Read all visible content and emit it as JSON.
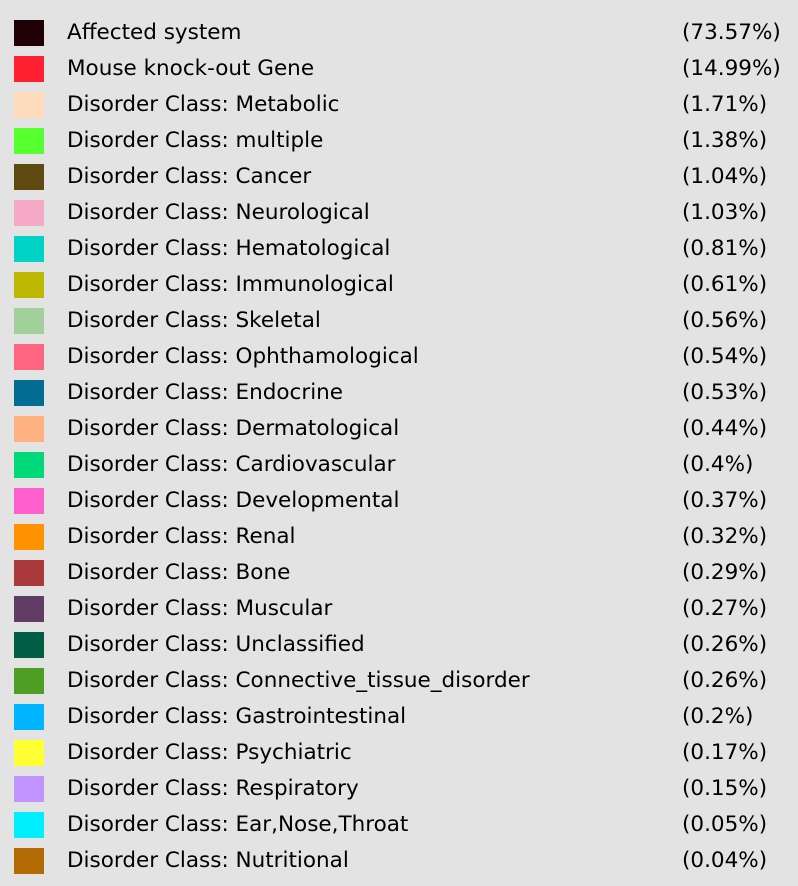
{
  "chart_data": {
    "type": "pie",
    "legend": {
      "items": [
        {
          "label": "Affected system",
          "percent": "(73.57%)",
          "value": 73.57,
          "color": "#200206"
        },
        {
          "label": "Mouse knock-out Gene",
          "percent": "(14.99%)",
          "value": 14.99,
          "color": "#ff2132"
        },
        {
          "label": "Disorder Class: Metabolic",
          "percent": "(1.71%)",
          "value": 1.71,
          "color": "#fedbbd"
        },
        {
          "label": "Disorder Class: multiple",
          "percent": "(1.38%)",
          "value": 1.38,
          "color": "#56ff2e"
        },
        {
          "label": "Disorder Class: Cancer",
          "percent": "(1.04%)",
          "value": 1.04,
          "color": "#5f4b12"
        },
        {
          "label": "Disorder Class: Neurological",
          "percent": "(1.03%)",
          "value": 1.03,
          "color": "#f6a9c6"
        },
        {
          "label": "Disorder Class: Hematological",
          "percent": "(0.81%)",
          "value": 0.81,
          "color": "#00d2c6"
        },
        {
          "label": "Disorder Class: Immunological",
          "percent": "(0.61%)",
          "value": 0.61,
          "color": "#bdb902"
        },
        {
          "label": "Disorder Class: Skeletal",
          "percent": "(0.56%)",
          "value": 0.56,
          "color": "#a1d09a"
        },
        {
          "label": "Disorder Class: Ophthamological",
          "percent": "(0.54%)",
          "value": 0.54,
          "color": "#ff6481"
        },
        {
          "label": "Disorder Class: Endocrine",
          "percent": "(0.53%)",
          "value": 0.53,
          "color": "#026c93"
        },
        {
          "label": "Disorder Class: Dermatological",
          "percent": "(0.44%)",
          "value": 0.44,
          "color": "#ffb080"
        },
        {
          "label": "Disorder Class: Cardiovascular",
          "percent": "(0.4%)",
          "value": 0.4,
          "color": "#00d97a"
        },
        {
          "label": "Disorder Class: Developmental",
          "percent": "(0.37%)",
          "value": 0.37,
          "color": "#ff5fcd"
        },
        {
          "label": "Disorder Class: Renal",
          "percent": "(0.32%)",
          "value": 0.32,
          "color": "#ff9201"
        },
        {
          "label": "Disorder Class: Bone",
          "percent": "(0.29%)",
          "value": 0.29,
          "color": "#a9393b"
        },
        {
          "label": "Disorder Class: Muscular",
          "percent": "(0.27%)",
          "value": 0.27,
          "color": "#613d66"
        },
        {
          "label": "Disorder Class: Unclassified",
          "percent": "(0.26%)",
          "value": 0.26,
          "color": "#015e44"
        },
        {
          "label": "Disorder Class: Connective_tissue_disorder",
          "percent": "(0.26%)",
          "value": 0.26,
          "color": "#4e9e23"
        },
        {
          "label": "Disorder Class: Gastrointestinal",
          "percent": "(0.2%)",
          "value": 0.2,
          "color": "#00b4ff"
        },
        {
          "label": "Disorder Class: Psychiatric",
          "percent": "(0.17%)",
          "value": 0.17,
          "color": "#ffff33"
        },
        {
          "label": "Disorder Class: Respiratory",
          "percent": "(0.15%)",
          "value": 0.15,
          "color": "#c193ff"
        },
        {
          "label": "Disorder Class: Ear,Nose,Throat",
          "percent": "(0.05%)",
          "value": 0.05,
          "color": "#00eeff"
        },
        {
          "label": "Disorder Class: Nutritional",
          "percent": "(0.04%)",
          "value": 0.04,
          "color": "#b36a04"
        }
      ]
    }
  }
}
